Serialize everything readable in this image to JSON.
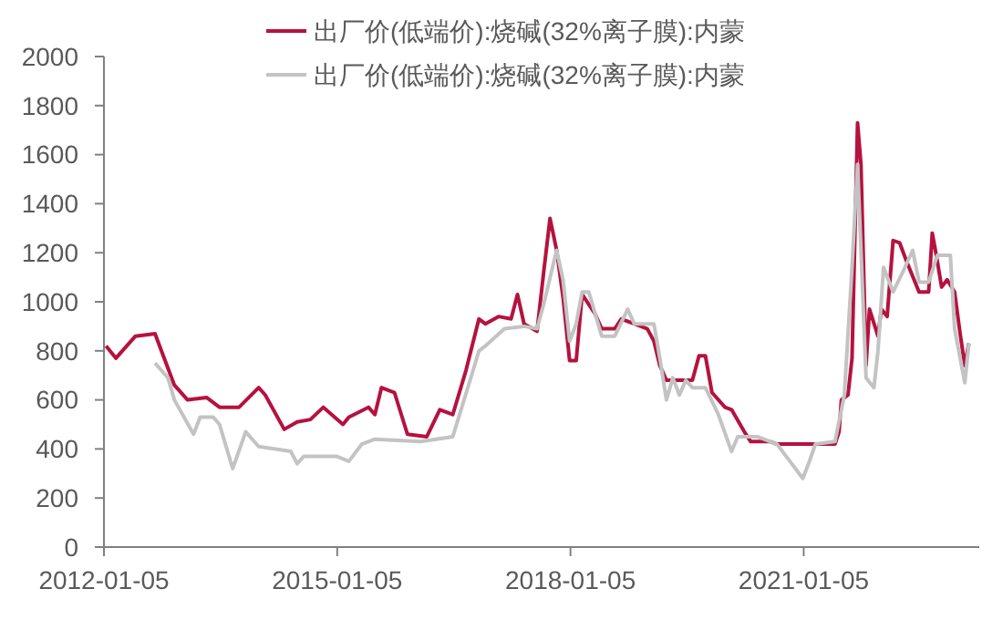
{
  "chart_data": {
    "type": "line",
    "legend": "top",
    "grid": false,
    "xlim": [
      "2012-01-05",
      "2023-04-10"
    ],
    "xticks": [
      "2012-01-05",
      "2015-01-05",
      "2018-01-05",
      "2021-01-05"
    ],
    "ylim": [
      0,
      2000
    ],
    "yticks": [
      0,
      200,
      400,
      600,
      800,
      1000,
      1200,
      1400,
      1600,
      1800,
      2000
    ],
    "series": [
      {
        "name": "出厂价(低端价):烧碱(32%离子膜):内蒙",
        "color": "#b5123f",
        "x": [
          "2012-01-15",
          "2012-03",
          "2012-06",
          "2012-09",
          "2012-10",
          "2012-12",
          "2013-02",
          "2013-05",
          "2013-07",
          "2013-10",
          "2014-01",
          "2014-02",
          "2014-05",
          "2014-07",
          "2014-09",
          "2014-11",
          "2015-02",
          "2015-03",
          "2015-06",
          "2015-07",
          "2015-08",
          "2015-10",
          "2015-12",
          "2016-03",
          "2016-05",
          "2016-07",
          "2016-09",
          "2016-11",
          "2016-12",
          "2017-02",
          "2017-04",
          "2017-05",
          "2017-06",
          "2017-08",
          "2017-09",
          "2017-10",
          "2017-11",
          "2017-12",
          "2018-01",
          "2018-02",
          "2018-03",
          "2018-05",
          "2018-06",
          "2018-08",
          "2018-09",
          "2018-11",
          "2019-01",
          "2019-02",
          "2019-03",
          "2019-04",
          "2019-08",
          "2019-09",
          "2019-10",
          "2019-11",
          "2020-01",
          "2020-02",
          "2020-04",
          "2020-05",
          "2020-08",
          "2020-09",
          "2021-01",
          "2021-03",
          "2021-06-01",
          "2021-06-20",
          "2021-07-01",
          "2021-08-01",
          "2021-08-20",
          "2021-09-15",
          "2021-10-01",
          "2021-10-25",
          "2021-11-10",
          "2021-12-20",
          "2022-01-05",
          "2022-02-01",
          "2022-03-01",
          "2022-04-01",
          "2022-05-01",
          "2022-07-01",
          "2022-08-15",
          "2022-09-01",
          "2022-09-20",
          "2022-10-15",
          "2022-11-10",
          "2022-12-15",
          "2023-01-10",
          "2023-02-01",
          "2023-02-20"
        ],
        "values": [
          820,
          770,
          860,
          870,
          800,
          660,
          600,
          610,
          570,
          570,
          650,
          620,
          480,
          510,
          520,
          570,
          500,
          530,
          570,
          540,
          650,
          630,
          460,
          450,
          560,
          540,
          720,
          930,
          910,
          940,
          930,
          1030,
          910,
          880,
          1120,
          1340,
          1210,
          1020,
          760,
          760,
          1030,
          950,
          890,
          890,
          930,
          910,
          890,
          840,
          740,
          680,
          680,
          780,
          780,
          630,
          570,
          560,
          470,
          430,
          430,
          420,
          420,
          420,
          420,
          470,
          600,
          620,
          770,
          1730,
          1560,
          740,
          970,
          860,
          970,
          940,
          1250,
          1240,
          1170,
          1040,
          1040,
          1280,
          1190,
          1060,
          1090,
          1040,
          870,
          740,
          830
        ]
      },
      {
        "name": "出厂价(低端价):烧碱(32%离子膜):内蒙",
        "color": "#c3c3c3",
        "x": [
          "2012-09",
          "2012-11",
          "2012-12",
          "2013-03",
          "2013-04",
          "2013-06",
          "2013-07",
          "2013-09",
          "2013-11",
          "2014-01",
          "2014-06",
          "2014-07",
          "2014-08",
          "2015-01",
          "2015-03",
          "2015-05",
          "2015-07",
          "2016-02",
          "2016-07",
          "2016-10",
          "2016-11",
          "2016-12",
          "2017-03",
          "2017-06",
          "2017-08",
          "2017-09",
          "2017-11",
          "2017-12",
          "2018-01",
          "2018-02",
          "2018-03",
          "2018-04",
          "2018-06",
          "2018-08",
          "2018-10",
          "2018-11",
          "2019-02",
          "2019-03",
          "2019-04",
          "2019-05",
          "2019-06",
          "2019-07",
          "2019-08",
          "2019-10",
          "2019-12",
          "2020-02",
          "2020-03",
          "2020-06",
          "2020-09",
          "2020-11",
          "2021-01",
          "2021-02",
          "2021-03",
          "2021-06-01",
          "2021-07-15",
          "2021-08-20",
          "2021-09-15",
          "2021-10-25",
          "2021-12-01",
          "2021-12-20",
          "2022-01-15",
          "2022-03-01",
          "2022-04-15",
          "2022-06-01",
          "2022-07-01",
          "2022-08-15",
          "2022-09-25",
          "2022-11-25",
          "2022-12-15",
          "2023-02-01",
          "2023-02-20"
        ],
        "values": [
          750,
          690,
          600,
          460,
          530,
          530,
          500,
          320,
          470,
          410,
          390,
          340,
          370,
          370,
          350,
          420,
          440,
          430,
          450,
          710,
          800,
          820,
          890,
          900,
          890,
          990,
          1210,
          1090,
          840,
          910,
          1040,
          1040,
          860,
          860,
          970,
          910,
          910,
          770,
          600,
          690,
          620,
          680,
          650,
          650,
          540,
          390,
          450,
          450,
          420,
          350,
          280,
          350,
          420,
          430,
          620,
          1140,
          1560,
          690,
          650,
          800,
          1140,
          1040,
          1120,
          1210,
          1080,
          1080,
          1190,
          1190,
          890,
          670,
          830
        ]
      }
    ]
  }
}
